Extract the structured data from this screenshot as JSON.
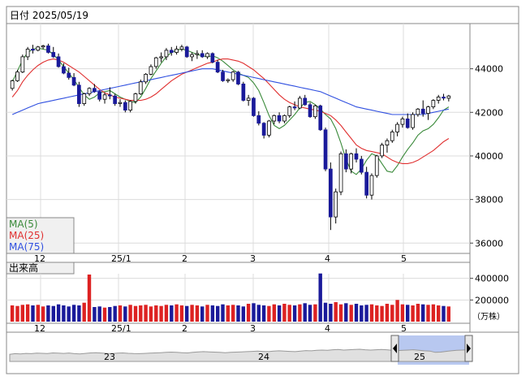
{
  "header": {
    "date_label": "日付 2025/05/19"
  },
  "legend": {
    "ma5": "MA(5)",
    "ma25": "MA(25)",
    "ma75": "MA(75)",
    "ma5_color": "#3a8a3a",
    "ma25_color": "#e03030",
    "ma75_color": "#3050e0"
  },
  "volume_panel": {
    "title": "出来高",
    "unit": "（万株）"
  },
  "colors": {
    "up": "#ffffff",
    "down": "#1a1a9a",
    "volume_normal": "#dd2222",
    "volume_alt": "#1a1a9a",
    "navigator_selected": "#b8c8f0"
  },
  "chart_data": {
    "type": "candlestick",
    "price_ticks": [
      44000,
      42000,
      40000,
      38000,
      36000
    ],
    "ylim": [
      35600,
      46000
    ],
    "month_labels": [
      "12",
      "25/1",
      "2",
      "3",
      "4",
      "5"
    ],
    "volume_ticks": [
      400000,
      200000
    ],
    "volume_ylim": [
      0,
      450000
    ],
    "navigator_year_labels": [
      "23",
      "24",
      "25"
    ],
    "series": [
      {
        "name": "MA(5)",
        "values": [
          43400,
          43900,
          44400,
          44750,
          44900,
          44950,
          44900,
          44850,
          44650,
          44400,
          44100,
          43800,
          43500,
          43150,
          42800,
          42600,
          42700,
          42900,
          42950,
          43000,
          42850,
          42700,
          42600,
          42500,
          42450,
          42700,
          43100,
          43550,
          43900,
          44250,
          44550,
          44750,
          44850,
          44900,
          44850,
          44750,
          44650,
          44600,
          44550,
          44600,
          44500,
          44350,
          44150,
          43950,
          43800,
          43700,
          43600,
          43350,
          43000,
          42450,
          41850,
          41400,
          41250,
          41400,
          41650,
          41900,
          42200,
          42450,
          42500,
          42350,
          42150,
          41900,
          41700,
          41250,
          40600,
          39850,
          39300,
          39150,
          39400,
          39800,
          40100,
          40000,
          39650,
          39300,
          39250,
          39550,
          39950,
          40300,
          40600,
          40950,
          41150,
          41250,
          41450,
          41750,
          42100,
          42250
        ]
      },
      {
        "name": "MA(25)",
        "values": [
          42700,
          43000,
          43400,
          43700,
          43950,
          44150,
          44300,
          44400,
          44450,
          44400,
          44300,
          44150,
          44000,
          43850,
          43650,
          43450,
          43250,
          43050,
          42900,
          42800,
          42700,
          42650,
          42600,
          42550,
          42550,
          42550,
          42600,
          42700,
          42850,
          43050,
          43250,
          43450,
          43600,
          43750,
          43850,
          43950,
          44050,
          44150,
          44250,
          44300,
          44400,
          44450,
          44450,
          44400,
          44350,
          44250,
          44100,
          43950,
          43750,
          43550,
          43300,
          43050,
          42800,
          42600,
          42450,
          42350,
          42250,
          42200,
          42150,
          42100,
          42050,
          41950,
          41850,
          41650,
          41400,
          41100,
          40800,
          40500,
          40350,
          40250,
          40200,
          40150,
          40100,
          39950,
          39800,
          39700,
          39650,
          39650,
          39700,
          39800,
          39950,
          40100,
          40250,
          40450,
          40650,
          40800
        ]
      },
      {
        "name": "MA(75)",
        "values": [
          41900,
          42000,
          42100,
          42200,
          42300,
          42400,
          42450,
          42500,
          42550,
          42600,
          42650,
          42700,
          42750,
          42800,
          42850,
          42900,
          42950,
          43000,
          43050,
          43100,
          43150,
          43200,
          43250,
          43300,
          43350,
          43400,
          43450,
          43500,
          43550,
          43600,
          43650,
          43700,
          43750,
          43800,
          43850,
          43900,
          43950,
          44000,
          44000,
          44000,
          43950,
          43900,
          43850,
          43800,
          43750,
          43700,
          43650,
          43600,
          43550,
          43500,
          43450,
          43400,
          43350,
          43300,
          43250,
          43200,
          43150,
          43100,
          43050,
          43000,
          42950,
          42850,
          42750,
          42650,
          42550,
          42450,
          42350,
          42250,
          42200,
          42150,
          42100,
          42050,
          42000,
          41950,
          41900,
          41900,
          41900,
          41900,
          41900,
          41900,
          41900,
          41950,
          42000,
          42050,
          42100,
          42150
        ]
      }
    ],
    "candles": [
      [
        43100,
        43500,
        43000,
        43450
      ],
      [
        43450,
        43950,
        43400,
        43850
      ],
      [
        43850,
        44650,
        43800,
        44550
      ],
      [
        44550,
        45000,
        44400,
        44900
      ],
      [
        44900,
        45100,
        44700,
        44850
      ],
      [
        44850,
        45050,
        44800,
        45000
      ],
      [
        45000,
        45100,
        44900,
        45050
      ],
      [
        45050,
        45150,
        44700,
        44750
      ],
      [
        44750,
        45000,
        44500,
        44550
      ],
      [
        44550,
        44700,
        44050,
        44100
      ],
      [
        44100,
        44250,
        43750,
        43800
      ],
      [
        43800,
        44050,
        43500,
        43600
      ],
      [
        43600,
        43800,
        43200,
        43250
      ],
      [
        43250,
        43400,
        42250,
        42400
      ],
      [
        42400,
        42900,
        42300,
        42850
      ],
      [
        42850,
        43150,
        42750,
        43100
      ],
      [
        43100,
        43300,
        42900,
        42950
      ],
      [
        42950,
        43000,
        42500,
        42600
      ],
      [
        42600,
        42900,
        42400,
        42800
      ],
      [
        42800,
        43150,
        42600,
        42750
      ],
      [
        42750,
        42850,
        42300,
        42400
      ],
      [
        42400,
        42600,
        42250,
        42450
      ],
      [
        42450,
        42550,
        42000,
        42100
      ],
      [
        42100,
        42550,
        42000,
        42500
      ],
      [
        42500,
        42900,
        42400,
        42850
      ],
      [
        42850,
        43500,
        42800,
        43400
      ],
      [
        43400,
        43800,
        43300,
        43750
      ],
      [
        43750,
        44200,
        43700,
        44100
      ],
      [
        44100,
        44550,
        44000,
        44500
      ],
      [
        44500,
        44750,
        44300,
        44550
      ],
      [
        44550,
        44950,
        44400,
        44850
      ],
      [
        44850,
        45000,
        44600,
        44750
      ],
      [
        44750,
        45050,
        44650,
        44900
      ],
      [
        44900,
        45100,
        44800,
        45000
      ],
      [
        45000,
        45050,
        44500,
        44550
      ],
      [
        44550,
        44750,
        44350,
        44650
      ],
      [
        44650,
        44850,
        44450,
        44700
      ],
      [
        44700,
        44850,
        44500,
        44550
      ],
      [
        44550,
        44750,
        44450,
        44700
      ],
      [
        44700,
        44750,
        44250,
        44300
      ],
      [
        44300,
        44400,
        43800,
        43850
      ],
      [
        43850,
        43950,
        43400,
        43450
      ],
      [
        43450,
        43550,
        43350,
        43500
      ],
      [
        43500,
        43900,
        43400,
        43850
      ],
      [
        43850,
        43900,
        43250,
        43300
      ],
      [
        43300,
        43400,
        42500,
        42550
      ],
      [
        42550,
        42800,
        42300,
        42650
      ],
      [
        42650,
        42700,
        41800,
        41850
      ],
      [
        41850,
        42050,
        41400,
        41500
      ],
      [
        41500,
        41550,
        40800,
        40950
      ],
      [
        40950,
        41650,
        40850,
        41600
      ],
      [
        41600,
        41900,
        41450,
        41850
      ],
      [
        41850,
        42000,
        41500,
        41600
      ],
      [
        41600,
        41900,
        41500,
        41850
      ],
      [
        41850,
        42300,
        41750,
        42250
      ],
      [
        42250,
        42500,
        42100,
        42200
      ],
      [
        42200,
        42750,
        42150,
        42650
      ],
      [
        42650,
        42800,
        42300,
        42350
      ],
      [
        42350,
        42450,
        41750,
        41800
      ],
      [
        41800,
        42350,
        41700,
        42300
      ],
      [
        42300,
        42350,
        41150,
        41200
      ],
      [
        41200,
        41300,
        39300,
        39400
      ],
      [
        39400,
        39700,
        36600,
        37200
      ],
      [
        37200,
        38500,
        36900,
        38350
      ],
      [
        38350,
        40200,
        38200,
        40100
      ],
      [
        40100,
        40300,
        39250,
        39400
      ],
      [
        39400,
        40150,
        39200,
        40100
      ],
      [
        40100,
        40350,
        39700,
        39850
      ],
      [
        39850,
        40000,
        39150,
        39250
      ],
      [
        39250,
        39500,
        38050,
        38200
      ],
      [
        38200,
        39200,
        38000,
        39100
      ],
      [
        39100,
        40050,
        39000,
        40000
      ],
      [
        40000,
        40600,
        39900,
        40500
      ],
      [
        40500,
        40800,
        40150,
        40700
      ],
      [
        40700,
        41200,
        40600,
        41100
      ],
      [
        41100,
        41550,
        40900,
        41450
      ],
      [
        41450,
        41800,
        41300,
        41700
      ],
      [
        41700,
        41950,
        41250,
        41300
      ],
      [
        41300,
        42000,
        41200,
        41900
      ],
      [
        41900,
        42200,
        41800,
        42150
      ],
      [
        42150,
        42550,
        41800,
        41950
      ],
      [
        41950,
        42300,
        41650,
        42250
      ],
      [
        42250,
        42600,
        42150,
        42550
      ],
      [
        42550,
        42800,
        42400,
        42700
      ],
      [
        42700,
        42850,
        42550,
        42650
      ],
      [
        42650,
        42800,
        42500,
        42750
      ]
    ],
    "volume": [
      150000,
      145000,
      155000,
      160000,
      150000,
      155000,
      140000,
      150000,
      145000,
      160000,
      150000,
      140000,
      155000,
      150000,
      175000,
      435000,
      135000,
      140000,
      130000,
      135000,
      145000,
      150000,
      140000,
      155000,
      145000,
      150000,
      155000,
      140000,
      150000,
      145000,
      155000,
      150000,
      160000,
      150000,
      145000,
      155000,
      150000,
      140000,
      155000,
      150000,
      145000,
      160000,
      150000,
      155000,
      150000,
      140000,
      165000,
      170000,
      155000,
      150000,
      145000,
      160000,
      150000,
      165000,
      155000,
      150000,
      160000,
      170000,
      155000,
      160000,
      445000,
      175000,
      165000,
      180000,
      160000,
      170000,
      155000,
      165000,
      150000,
      155000,
      160000,
      150000,
      145000,
      165000,
      155000,
      200000,
      160000,
      155000,
      150000,
      165000,
      160000,
      155000,
      160000,
      150000,
      145000,
      140000
    ],
    "navigator_series": [
      0.55,
      0.6,
      0.58,
      0.62,
      0.6,
      0.64,
      0.63,
      0.61,
      0.66,
      0.64,
      0.62,
      0.65,
      0.6,
      0.58,
      0.62,
      0.66,
      0.68,
      0.65,
      0.62,
      0.6,
      0.64,
      0.66,
      0.63,
      0.61,
      0.6,
      0.62,
      0.64,
      0.66,
      0.68,
      0.7,
      0.72,
      0.7,
      0.68,
      0.66,
      0.7,
      0.74,
      0.76,
      0.74,
      0.72,
      0.7,
      0.68,
      0.7,
      0.72,
      0.74,
      0.76,
      0.78,
      0.8,
      0.78,
      0.76,
      0.8,
      0.82,
      0.8,
      0.78,
      0.76,
      0.8,
      0.84,
      0.82,
      0.86,
      0.88,
      0.86,
      0.9,
      0.92,
      0.88,
      0.9,
      0.92,
      0.94,
      0.9,
      0.88,
      0.9,
      0.92,
      0.9,
      0.86,
      0.84,
      0.86,
      0.88,
      0.9,
      0.86,
      0.82,
      0.8,
      0.7,
      0.72,
      0.78,
      0.82,
      0.86,
      0.88,
      0.9
    ]
  }
}
